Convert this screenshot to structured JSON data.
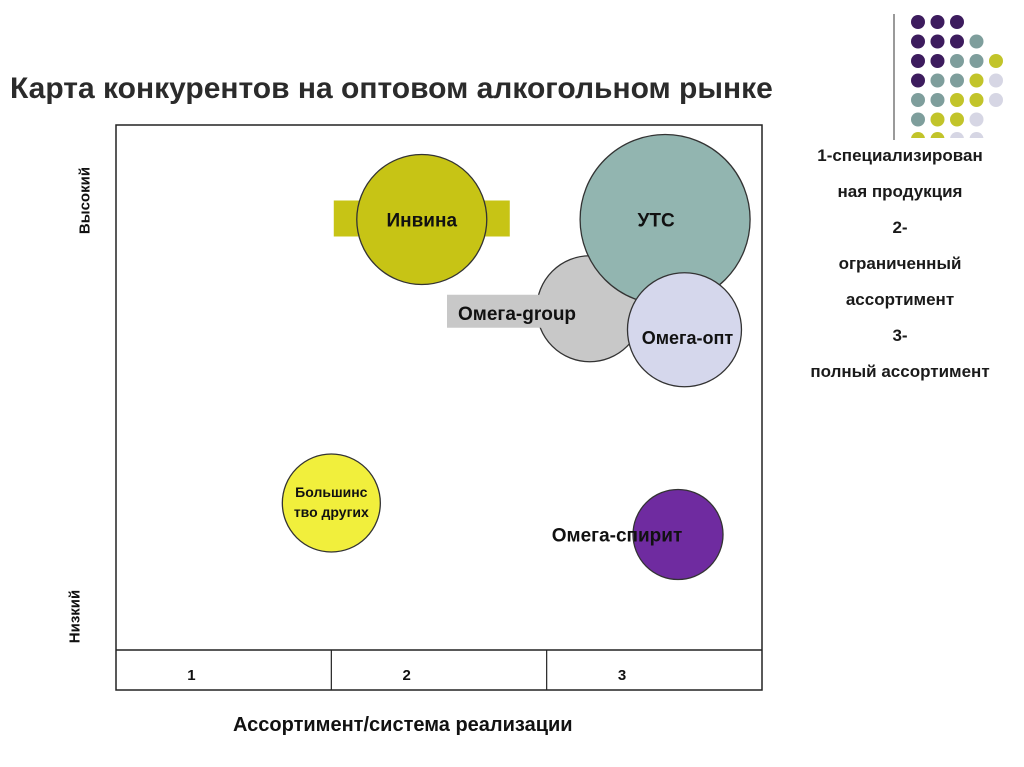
{
  "title": "Карта конкурентов на оптовом алкогольном рынке",
  "legend": [
    "1-специализирован",
    "ная продукция",
    "2-",
    "ограниченный",
    "ассортимент",
    "3-",
    "полный ассортимент"
  ],
  "chart_data": {
    "type": "bubble",
    "xlabel": "Ассортимент/система реализации",
    "y_high_label": "Высокий",
    "y_low_label": "Низкий",
    "x_categories": [
      "1",
      "2",
      "3"
    ],
    "xlim": [
      0,
      3
    ],
    "ylim": [
      0,
      10
    ],
    "grid": false,
    "bubbles": [
      {
        "label": "Инвина",
        "x": 1.42,
        "y": 8.2,
        "size": 6.5,
        "color": "#c7c415"
      },
      {
        "label": "УТС",
        "x": 2.55,
        "y": 8.2,
        "size": 8.5,
        "color": "#92b5b0"
      },
      {
        "label": "Омега-group",
        "x": 2.2,
        "y": 6.5,
        "size": 5.3,
        "color": "#c8c8c8"
      },
      {
        "label": "Омега-опт",
        "x": 2.64,
        "y": 6.1,
        "size": 5.7,
        "color": "#d5d7ec"
      },
      {
        "label": "Большинство других",
        "x": 1.0,
        "y": 2.8,
        "size": 4.9,
        "color": "#f1ef3c"
      },
      {
        "label": "Омега-спирит",
        "x": 2.61,
        "y": 2.2,
        "size": 4.5,
        "color": "#6f2ba0"
      }
    ]
  },
  "decor": {
    "dot_colors": [
      "#3d1c5e",
      "#7e9e9c",
      "#c2c42a",
      "#d6d6e4"
    ]
  }
}
